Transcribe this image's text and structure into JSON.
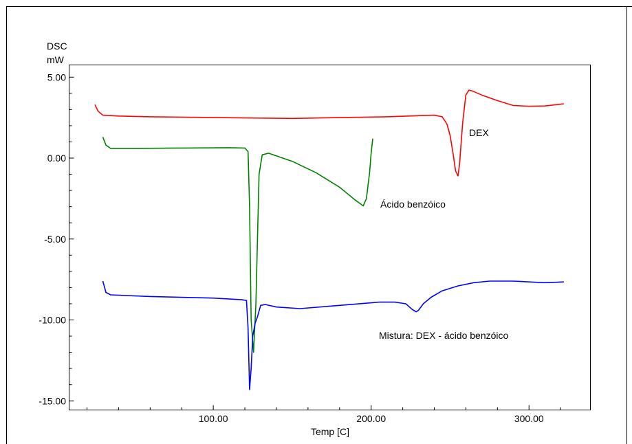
{
  "chart_data": {
    "type": "line",
    "ylabel": "DSC",
    "yunit": "mW",
    "xlabel": "Temp  [C]",
    "xlim": [
      0,
      350
    ],
    "ylim": [
      -16.0,
      5.0
    ],
    "x_ticks": [
      100,
      200,
      300
    ],
    "x_tick_labels": [
      "100.00",
      "200.00",
      "300.00"
    ],
    "y_ticks": [
      5,
      0,
      -5,
      -10,
      -15
    ],
    "y_tick_labels": [
      "5.00",
      "0.00",
      "-5.00",
      "-10.00",
      "-15.00"
    ],
    "grid": false,
    "series": [
      {
        "name": "DEX",
        "color": "#ff0000",
        "x": [
          25,
          27,
          30,
          40,
          60,
          90,
          120,
          150,
          180,
          210,
          230,
          240,
          245,
          248,
          250,
          252,
          253.5,
          255,
          256,
          258,
          260,
          262,
          264,
          270,
          280,
          290,
          300,
          310,
          322
        ],
        "y": [
          3.3,
          2.9,
          2.65,
          2.6,
          2.55,
          2.52,
          2.48,
          2.45,
          2.5,
          2.55,
          2.62,
          2.65,
          2.55,
          2.1,
          1.4,
          0.2,
          -0.8,
          -1.1,
          -0.4,
          2.2,
          3.9,
          4.2,
          4.15,
          3.9,
          3.55,
          3.25,
          3.2,
          3.22,
          3.35
        ]
      },
      {
        "name": "Ácido benzóico",
        "color": "#008000",
        "x": [
          30,
          32,
          35,
          50,
          80,
          110,
          120,
          122,
          123,
          124,
          125.5,
          127,
          129,
          131,
          135,
          150,
          165,
          180,
          190,
          195,
          197,
          199,
          200,
          201
        ],
        "y": [
          1.3,
          0.8,
          0.6,
          0.6,
          0.62,
          0.64,
          0.62,
          0.4,
          -3.0,
          -10.0,
          -12.0,
          -9.0,
          -1.0,
          0.2,
          0.3,
          -0.2,
          -0.9,
          -1.8,
          -2.6,
          -2.95,
          -2.5,
          -0.9,
          0.3,
          1.2
        ]
      },
      {
        "name": "Mistura: DEX - ácido benzóico",
        "color": "#0000ff",
        "x": [
          30,
          32,
          35,
          60,
          100,
          118,
          121,
          122,
          123,
          124,
          125,
          126.5,
          128,
          130,
          133,
          140,
          155,
          180,
          205,
          215,
          222,
          226,
          228.5,
          230,
          233,
          238,
          245,
          255,
          265,
          275,
          290,
          310,
          322
        ],
        "y": [
          -7.6,
          -8.3,
          -8.45,
          -8.55,
          -8.65,
          -8.75,
          -8.8,
          -10.5,
          -14.3,
          -13.0,
          -11.0,
          -10.2,
          -9.8,
          -9.1,
          -9.05,
          -9.2,
          -9.3,
          -9.1,
          -8.9,
          -8.9,
          -9.0,
          -9.35,
          -9.5,
          -9.4,
          -9.0,
          -8.6,
          -8.2,
          -7.9,
          -7.7,
          -7.6,
          -7.6,
          -7.7,
          -7.65
        ]
      }
    ],
    "annotations": [
      "DEX",
      "Ácido benzóico",
      "Mistura: DEX - ácido benzóico"
    ]
  }
}
